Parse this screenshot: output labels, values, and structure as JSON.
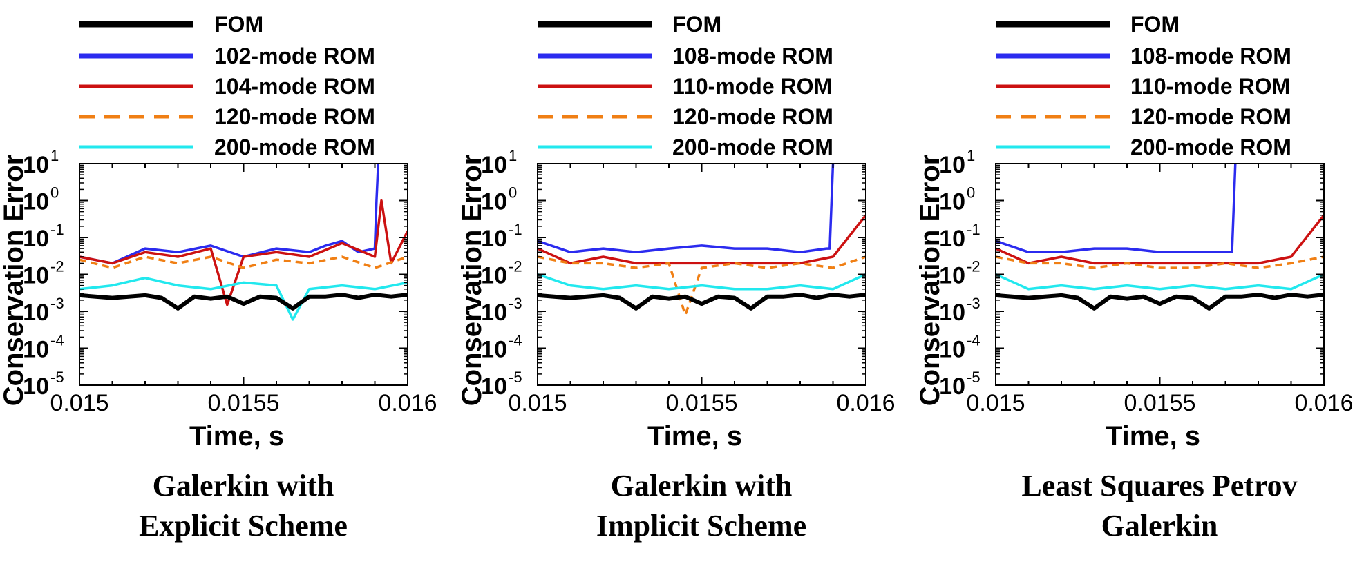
{
  "chart_data": [
    {
      "type": "line",
      "caption": [
        "Galerkin with",
        "Explicit Scheme"
      ],
      "xlabel": "Time, s",
      "ylabel": "Conservation Error",
      "xlim": [
        0.015,
        0.016
      ],
      "ylim_exponent": [
        -5,
        1
      ],
      "y_scale": "log",
      "x_ticks": [
        "0.015",
        "0.0155",
        "0.016"
      ],
      "y_ticks": [
        {
          "base": "10",
          "exp": "1"
        },
        {
          "base": "10",
          "exp": "0"
        },
        {
          "base": "10",
          "exp": "-1"
        },
        {
          "base": "10",
          "exp": "-2"
        },
        {
          "base": "10",
          "exp": "-3"
        },
        {
          "base": "10",
          "exp": "-4"
        },
        {
          "base": "10",
          "exp": "-5"
        }
      ],
      "grid": false,
      "legend_position": "top",
      "series": [
        {
          "name": "FOM",
          "color": "#000000",
          "dash": "solid",
          "x": [
            0.015,
            0.0151,
            0.0152,
            0.01525,
            0.0153,
            0.01535,
            0.0154,
            0.01545,
            0.0155,
            0.01555,
            0.0156,
            0.01565,
            0.0157,
            0.01575,
            0.0158,
            0.01585,
            0.0159,
            0.01595,
            0.016
          ],
          "y": [
            0.0027,
            0.0023,
            0.0027,
            0.0023,
            0.0012,
            0.0025,
            0.0022,
            0.0025,
            0.0016,
            0.0025,
            0.0023,
            0.0012,
            0.0025,
            0.0025,
            0.0028,
            0.0023,
            0.0028,
            0.0025,
            0.0028
          ]
        },
        {
          "name": "102-mode ROM",
          "color": "#2b2bef",
          "dash": "solid",
          "x": [
            0.015,
            0.0151,
            0.0152,
            0.0153,
            0.0154,
            0.0155,
            0.0156,
            0.0157,
            0.01575,
            0.0158,
            0.01585,
            0.0159,
            0.015905,
            0.01591
          ],
          "y": [
            0.03,
            0.02,
            0.05,
            0.04,
            0.06,
            0.03,
            0.05,
            0.04,
            0.06,
            0.08,
            0.04,
            0.05,
            1,
            10
          ]
        },
        {
          "name": "104-mode ROM",
          "color": "#cc1111",
          "dash": "solid",
          "x": [
            0.015,
            0.0151,
            0.0152,
            0.0153,
            0.0154,
            0.01545,
            0.0155,
            0.0156,
            0.0157,
            0.0158,
            0.0159,
            0.01592,
            0.01595,
            0.016
          ],
          "y": [
            0.03,
            0.02,
            0.04,
            0.03,
            0.05,
            0.0015,
            0.03,
            0.04,
            0.03,
            0.07,
            0.03,
            1.0,
            0.02,
            0.15
          ]
        },
        {
          "name": "120-mode ROM",
          "color": "#f07f14",
          "dash": "dash",
          "x": [
            0.015,
            0.0151,
            0.0152,
            0.0153,
            0.0154,
            0.0155,
            0.0156,
            0.0157,
            0.0158,
            0.0159,
            0.016
          ],
          "y": [
            0.025,
            0.015,
            0.03,
            0.02,
            0.03,
            0.015,
            0.025,
            0.02,
            0.03,
            0.015,
            0.03
          ]
        },
        {
          "name": "200-mode ROM",
          "color": "#22e8ee",
          "dash": "solid",
          "x": [
            0.015,
            0.0151,
            0.0152,
            0.0153,
            0.0154,
            0.0155,
            0.0156,
            0.01565,
            0.0157,
            0.0158,
            0.0159,
            0.016
          ],
          "y": [
            0.004,
            0.005,
            0.008,
            0.005,
            0.004,
            0.006,
            0.005,
            0.0006,
            0.004,
            0.005,
            0.004,
            0.006
          ]
        }
      ]
    },
    {
      "type": "line",
      "caption": [
        "Galerkin with",
        "Implicit Scheme"
      ],
      "xlabel": "Time, s",
      "ylabel": "Conservation Error",
      "xlim": [
        0.015,
        0.016
      ],
      "ylim_exponent": [
        -5,
        1
      ],
      "y_scale": "log",
      "x_ticks": [
        "0.015",
        "0.0155",
        "0.016"
      ],
      "y_ticks": [
        {
          "base": "10",
          "exp": "1"
        },
        {
          "base": "10",
          "exp": "0"
        },
        {
          "base": "10",
          "exp": "-1"
        },
        {
          "base": "10",
          "exp": "-2"
        },
        {
          "base": "10",
          "exp": "-3"
        },
        {
          "base": "10",
          "exp": "-4"
        },
        {
          "base": "10",
          "exp": "-5"
        }
      ],
      "grid": false,
      "legend_position": "top",
      "series": [
        {
          "name": "FOM",
          "color": "#000000",
          "dash": "solid",
          "x": [
            0.015,
            0.0151,
            0.0152,
            0.01525,
            0.0153,
            0.01535,
            0.0154,
            0.01545,
            0.0155,
            0.01555,
            0.0156,
            0.01565,
            0.0157,
            0.01575,
            0.0158,
            0.01585,
            0.0159,
            0.01595,
            0.016
          ],
          "y": [
            0.0027,
            0.0023,
            0.0027,
            0.0023,
            0.0012,
            0.0025,
            0.0022,
            0.0025,
            0.0016,
            0.0025,
            0.0023,
            0.0012,
            0.0025,
            0.0025,
            0.0028,
            0.0023,
            0.0028,
            0.0025,
            0.0028
          ]
        },
        {
          "name": "108-mode ROM",
          "color": "#2b2bef",
          "dash": "solid",
          "x": [
            0.015,
            0.0151,
            0.0152,
            0.0153,
            0.0154,
            0.0155,
            0.0156,
            0.0157,
            0.0158,
            0.01588,
            0.01589,
            0.0159
          ],
          "y": [
            0.08,
            0.04,
            0.05,
            0.04,
            0.05,
            0.06,
            0.05,
            0.05,
            0.04,
            0.05,
            0.05,
            10
          ]
        },
        {
          "name": "110-mode ROM",
          "color": "#cc1111",
          "dash": "solid",
          "x": [
            0.015,
            0.0151,
            0.0152,
            0.0153,
            0.0154,
            0.0155,
            0.0156,
            0.0157,
            0.0158,
            0.0159,
            0.016
          ],
          "y": [
            0.05,
            0.02,
            0.03,
            0.02,
            0.02,
            0.02,
            0.02,
            0.02,
            0.02,
            0.03,
            0.4
          ]
        },
        {
          "name": "120-mode ROM",
          "color": "#f07f14",
          "dash": "dash",
          "x": [
            0.015,
            0.0151,
            0.0152,
            0.0153,
            0.0154,
            0.01545,
            0.0155,
            0.0156,
            0.0157,
            0.0158,
            0.0159,
            0.016
          ],
          "y": [
            0.03,
            0.02,
            0.02,
            0.015,
            0.02,
            0.0008,
            0.015,
            0.02,
            0.015,
            0.02,
            0.015,
            0.03
          ]
        },
        {
          "name": "200-mode ROM",
          "color": "#22e8ee",
          "dash": "solid",
          "x": [
            0.015,
            0.0151,
            0.0152,
            0.0153,
            0.0154,
            0.0155,
            0.0156,
            0.0157,
            0.0158,
            0.0159,
            0.016
          ],
          "y": [
            0.01,
            0.005,
            0.004,
            0.005,
            0.004,
            0.005,
            0.004,
            0.004,
            0.005,
            0.004,
            0.01
          ]
        }
      ]
    },
    {
      "type": "line",
      "caption": [
        "Least Squares Petrov",
        "Galerkin"
      ],
      "xlabel": "Time, s",
      "ylabel": "Conservation Error",
      "xlim": [
        0.015,
        0.016
      ],
      "ylim_exponent": [
        -5,
        1
      ],
      "y_scale": "log",
      "x_ticks": [
        "0.015",
        "0.0155",
        "0.016"
      ],
      "y_ticks": [
        {
          "base": "10",
          "exp": "1"
        },
        {
          "base": "10",
          "exp": "0"
        },
        {
          "base": "10",
          "exp": "-1"
        },
        {
          "base": "10",
          "exp": "-2"
        },
        {
          "base": "10",
          "exp": "-3"
        },
        {
          "base": "10",
          "exp": "-4"
        },
        {
          "base": "10",
          "exp": "-5"
        }
      ],
      "grid": false,
      "legend_position": "top",
      "series": [
        {
          "name": "FOM",
          "color": "#000000",
          "dash": "solid",
          "x": [
            0.015,
            0.0151,
            0.0152,
            0.01525,
            0.0153,
            0.01535,
            0.0154,
            0.01545,
            0.0155,
            0.01555,
            0.0156,
            0.01565,
            0.0157,
            0.01575,
            0.0158,
            0.01585,
            0.0159,
            0.01595,
            0.016
          ],
          "y": [
            0.0027,
            0.0023,
            0.0027,
            0.0023,
            0.0012,
            0.0025,
            0.0022,
            0.0025,
            0.0016,
            0.0025,
            0.0023,
            0.0012,
            0.0025,
            0.0025,
            0.0028,
            0.0023,
            0.0028,
            0.0025,
            0.0028
          ]
        },
        {
          "name": "108-mode ROM",
          "color": "#2b2bef",
          "dash": "solid",
          "x": [
            0.015,
            0.0151,
            0.0152,
            0.0153,
            0.0154,
            0.0155,
            0.0156,
            0.0157,
            0.01572,
            0.01573
          ],
          "y": [
            0.08,
            0.04,
            0.04,
            0.05,
            0.05,
            0.04,
            0.04,
            0.04,
            0.04,
            10
          ]
        },
        {
          "name": "110-mode ROM",
          "color": "#cc1111",
          "dash": "solid",
          "x": [
            0.015,
            0.0151,
            0.0152,
            0.0153,
            0.0154,
            0.0155,
            0.0156,
            0.0157,
            0.0158,
            0.0159,
            0.016
          ],
          "y": [
            0.05,
            0.02,
            0.03,
            0.02,
            0.02,
            0.02,
            0.02,
            0.02,
            0.02,
            0.03,
            0.4
          ]
        },
        {
          "name": "120-mode ROM",
          "color": "#f07f14",
          "dash": "dash",
          "x": [
            0.015,
            0.0151,
            0.0152,
            0.0153,
            0.0154,
            0.0155,
            0.0156,
            0.0157,
            0.0158,
            0.0159,
            0.016
          ],
          "y": [
            0.03,
            0.02,
            0.02,
            0.015,
            0.02,
            0.015,
            0.015,
            0.02,
            0.015,
            0.02,
            0.03
          ]
        },
        {
          "name": "200-mode ROM",
          "color": "#22e8ee",
          "dash": "solid",
          "x": [
            0.015,
            0.0151,
            0.0152,
            0.0153,
            0.0154,
            0.0155,
            0.0156,
            0.0157,
            0.0158,
            0.0159,
            0.016
          ],
          "y": [
            0.01,
            0.004,
            0.005,
            0.004,
            0.005,
            0.004,
            0.005,
            0.004,
            0.005,
            0.004,
            0.01
          ]
        }
      ]
    }
  ]
}
